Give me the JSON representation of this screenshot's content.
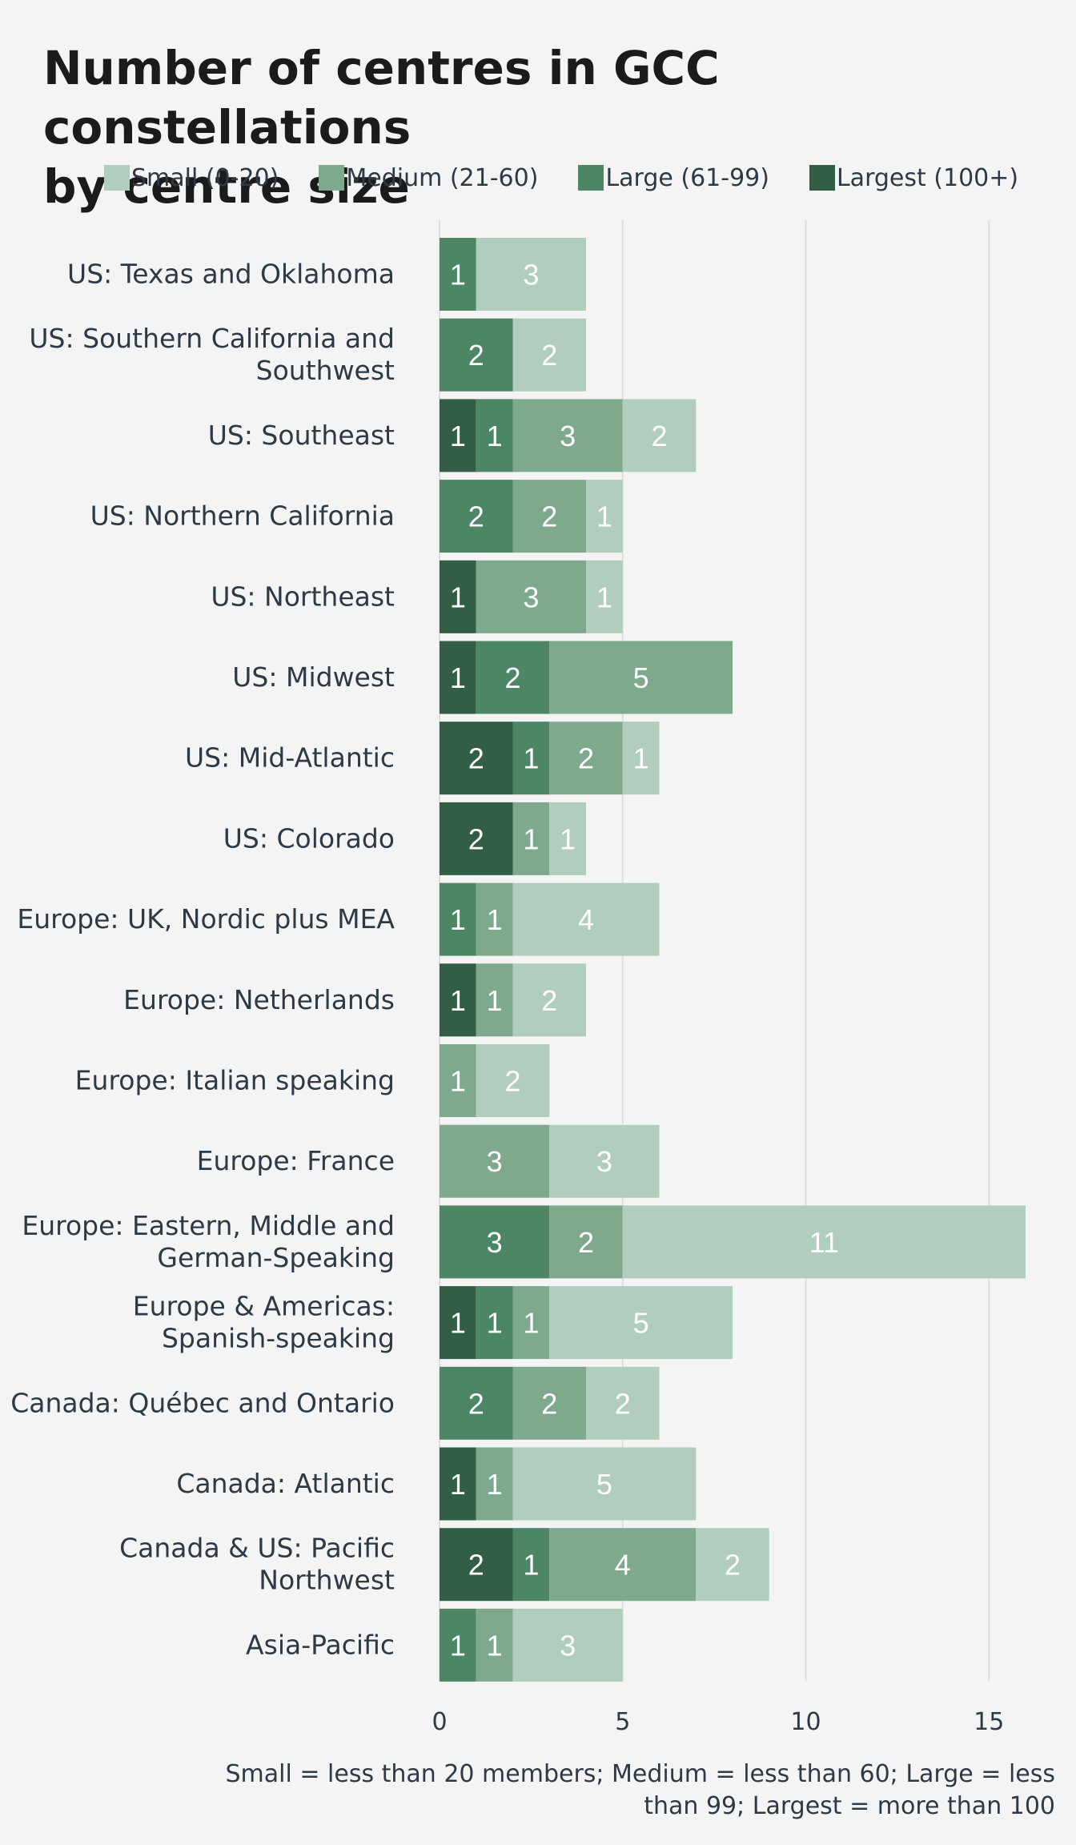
{
  "title_lines": [
    "Number of centres in GCC constellations",
    "by centre size"
  ],
  "legend": [
    {
      "label": "Small (0-20)",
      "color": "#b1cdbd"
    },
    {
      "label": "Medium (21-60)",
      "color": "#7fa98d"
    },
    {
      "label": "Large (61-99)",
      "color": "#4c8664"
    },
    {
      "label": "Largest (100+)",
      "color": "#315e45"
    }
  ],
  "footnote": "Small = less than 20 members; Medium = less than 60; Large = less than 99; Largest = more than 100",
  "chart_data": {
    "type": "bar",
    "orientation": "horizontal",
    "stacked": true,
    "title": "Number of centres in GCC constellations by centre size",
    "xlabel": "",
    "ylabel": "",
    "xlim": [
      0,
      16.5
    ],
    "xticks": [
      0,
      5,
      10,
      15
    ],
    "grid": "vertical",
    "legend_position": "top",
    "categories": [
      "US: Texas and Oklahoma",
      "US: Southern California and Southwest",
      "US: Southeast",
      "US: Northern California",
      "US: Northeast",
      "US: Midwest",
      "US: Mid-Atlantic",
      "US: Colorado",
      "Europe: UK, Nordic plus MEA",
      "Europe: Netherlands",
      "Europe: Italian speaking",
      "Europe: France",
      "Europe: Eastern, Middle and German-Speaking",
      "Europe & Americas: Spanish-speaking",
      "Canada: Québec and Ontario",
      "Canada: Atlantic",
      "Canada & US: Pacific Northwest",
      "Asia-Pacific"
    ],
    "category_lines": [
      [
        "US: Texas and Oklahoma"
      ],
      [
        "US: Southern California and",
        "Southwest"
      ],
      [
        "US: Southeast"
      ],
      [
        "US: Northern California"
      ],
      [
        "US: Northeast"
      ],
      [
        "US: Midwest"
      ],
      [
        "US: Mid-Atlantic"
      ],
      [
        "US: Colorado"
      ],
      [
        "Europe: UK, Nordic plus MEA"
      ],
      [
        "Europe: Netherlands"
      ],
      [
        "Europe: Italian speaking"
      ],
      [
        "Europe: France"
      ],
      [
        "Europe: Eastern, Middle and",
        "German-Speaking"
      ],
      [
        "Europe & Americas:",
        "Spanish-speaking"
      ],
      [
        "Canada: Québec and Ontario"
      ],
      [
        "Canada: Atlantic"
      ],
      [
        "Canada & US: Pacific",
        "Northwest"
      ],
      [
        "Asia-Pacific"
      ]
    ],
    "series": [
      {
        "name": "Largest (100+)",
        "color": "#315e45",
        "values": [
          0,
          0,
          1,
          0,
          1,
          1,
          2,
          2,
          0,
          1,
          0,
          0,
          0,
          1,
          0,
          1,
          2,
          0
        ]
      },
      {
        "name": "Large (61-99)",
        "color": "#4c8664",
        "values": [
          1,
          2,
          1,
          2,
          0,
          2,
          1,
          0,
          1,
          0,
          0,
          0,
          3,
          1,
          2,
          0,
          1,
          1
        ]
      },
      {
        "name": "Medium (21-60)",
        "color": "#7fa98d",
        "values": [
          0,
          0,
          3,
          2,
          3,
          5,
          2,
          1,
          1,
          1,
          1,
          3,
          2,
          1,
          2,
          1,
          4,
          1
        ]
      },
      {
        "name": "Small (0-20)",
        "color": "#b1cdbd",
        "values": [
          3,
          2,
          2,
          1,
          1,
          0,
          1,
          1,
          4,
          2,
          2,
          3,
          11,
          5,
          2,
          5,
          2,
          3
        ]
      }
    ]
  }
}
